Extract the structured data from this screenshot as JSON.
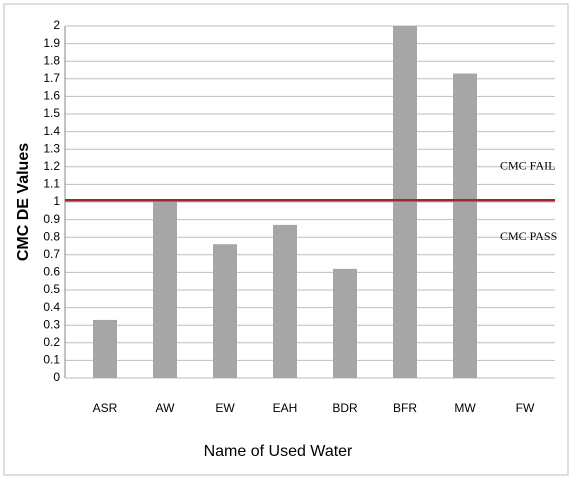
{
  "chart_data": {
    "type": "bar",
    "xlabel": "Name of Used Water",
    "ylabel": "CMC DE Values",
    "categories": [
      "ASR",
      "AW",
      "EW",
      "EAH",
      "BDR",
      "BFR",
      "MW",
      "FW"
    ],
    "values": [
      0.33,
      1.01,
      0.76,
      0.87,
      0.62,
      2.0,
      1.73,
      0
    ],
    "color": "#a6a6a6",
    "ylim": [
      0,
      2
    ],
    "yticks": [
      0,
      0.1,
      0.2,
      0.3,
      0.4,
      0.5,
      0.6,
      0.7,
      0.8,
      0.9,
      1,
      1.1,
      1.2,
      1.3,
      1.4,
      1.5,
      1.6,
      1.7,
      1.8,
      1.9,
      2
    ],
    "grid": true,
    "reference_line": {
      "value": 1.01,
      "color": "#a0282a"
    },
    "annotations": [
      {
        "text": "CMC FAIL",
        "y": 1.2
      },
      {
        "text": "CMC PASS",
        "y": 0.8
      }
    ]
  }
}
